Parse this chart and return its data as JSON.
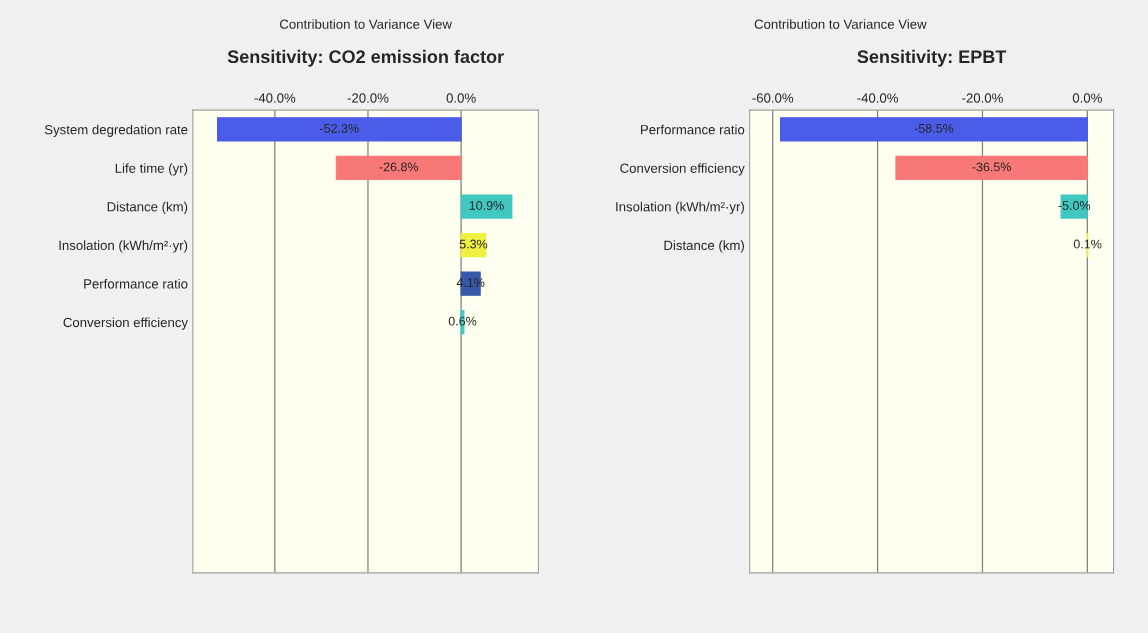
{
  "chart_data": [
    {
      "type": "bar",
      "orientation": "horizontal",
      "subtitle": "Contribution to Variance View",
      "title": "Sensitivity: CO2 emission factor",
      "categories": [
        "System degredation rate",
        "Life time (yr)",
        "Distance (km)",
        "Insolation (kWh/m²·yr)",
        "Performance ratio",
        "Conversion efficiency"
      ],
      "values": [
        -52.3,
        -26.8,
        10.9,
        5.3,
        4.1,
        0.6
      ],
      "colors": [
        "#4a5ce8",
        "#f87878",
        "#40c8c0",
        "#f0f040",
        "#3858a8",
        "#40c8c0"
      ],
      "value_labels": [
        "-52.3%",
        "-26.8%",
        "10.9%",
        "5.3%",
        "4.1%",
        "0.6%"
      ],
      "xlim": [
        -57.6,
        16.6
      ],
      "xticks": [
        {
          "value": -40,
          "label": "-40.0%"
        },
        {
          "value": -20,
          "label": "-20.0%"
        },
        {
          "value": 0,
          "label": "0.0%"
        }
      ],
      "grid": "x"
    },
    {
      "type": "bar",
      "orientation": "horizontal",
      "subtitle": "Contribution to Variance View",
      "title": "Sensitivity: EPBT",
      "categories": [
        "Performance ratio",
        "Conversion efficiency",
        "Insolation (kWh/m²·yr)",
        "Distance (km)"
      ],
      "values": [
        -58.5,
        -36.5,
        -5.0,
        0.1
      ],
      "colors": [
        "#4a5ce8",
        "#f87878",
        "#40c8c0",
        "#f0f040"
      ],
      "value_labels": [
        "-58.5%",
        "-36.5%",
        "-5.0%",
        "0.1%"
      ],
      "xlim": [
        -64.4,
        5.0
      ],
      "xticks": [
        {
          "value": -60,
          "label": "-60.0%"
        },
        {
          "value": -40,
          "label": "-40.0%"
        },
        {
          "value": -20,
          "label": "-20.0%"
        },
        {
          "value": 0,
          "label": "0.0%"
        }
      ],
      "grid": "x"
    }
  ]
}
